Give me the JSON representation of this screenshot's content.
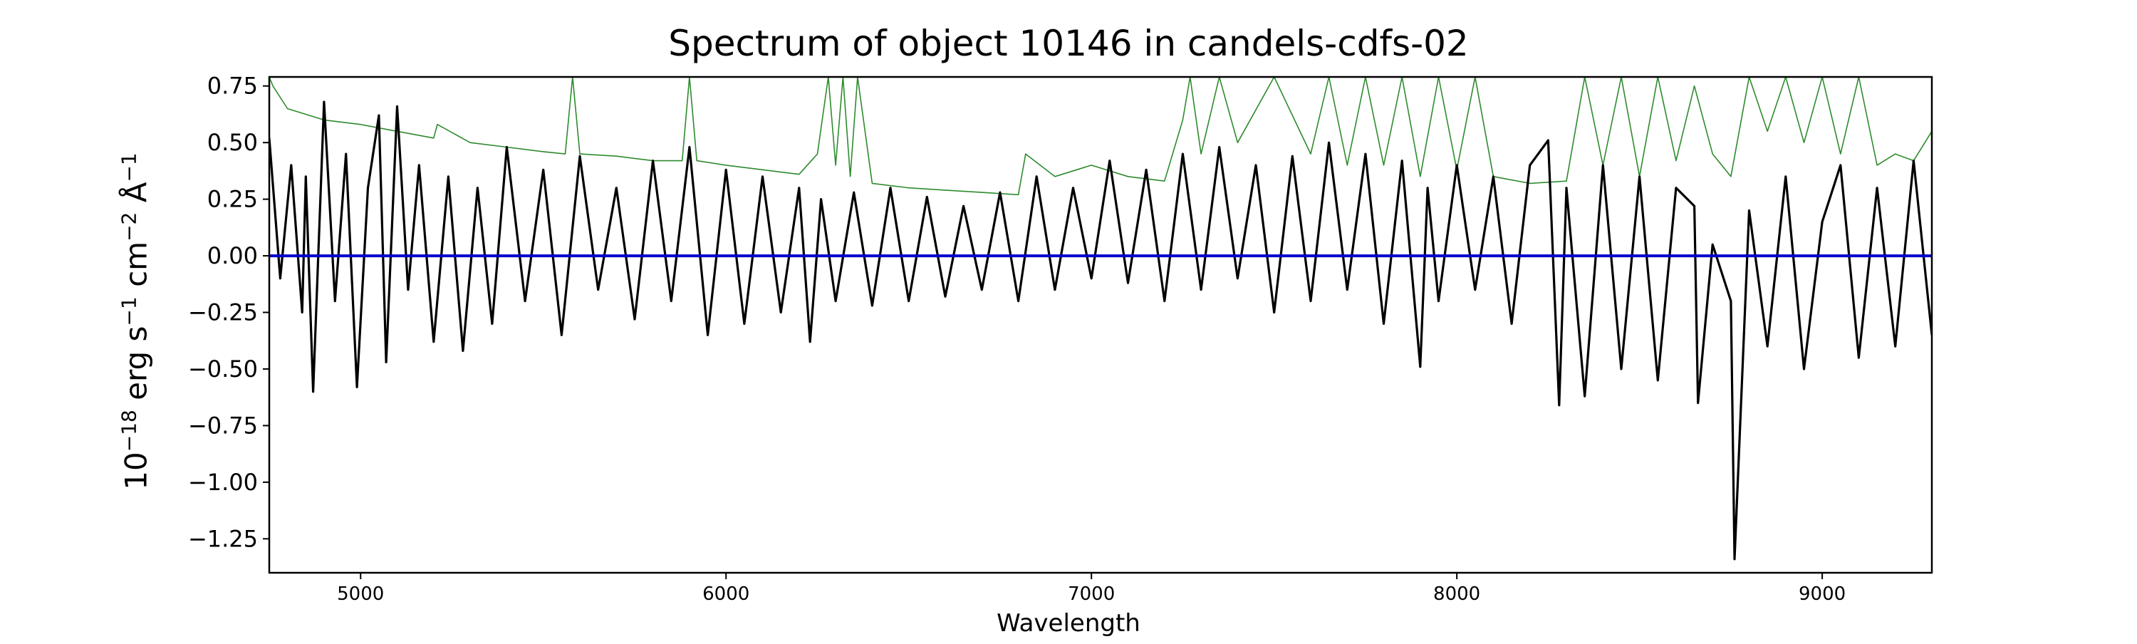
{
  "chart_data": {
    "type": "line",
    "title": "Spectrum of object 10146 in candels-cdfs-02",
    "xlabel": "Wavelength",
    "ylabel": {
      "text": "erg s cm Å",
      "base": "10",
      "exp_scale": "−18",
      "unit_erg": "erg s",
      "exp_s": "−1",
      "unit_cm": "cm",
      "exp_cm": "−2",
      "unit_A": "Å",
      "exp_A": "−1"
    },
    "xlim": [
      4750,
      9300
    ],
    "ylim": [
      -1.4,
      0.79
    ],
    "xticks": [
      5000,
      6000,
      7000,
      8000,
      9000
    ],
    "xtick_labels": [
      "5000",
      "6000",
      "7000",
      "8000",
      "9000"
    ],
    "yticks": [
      0.75,
      0.5,
      0.25,
      0.0,
      -0.25,
      -0.5,
      -0.75,
      -1.0,
      -1.25
    ],
    "ytick_labels": [
      "0.75",
      "0.50",
      "0.25",
      "0.00",
      "−0.25",
      "−0.50",
      "−0.75",
      "−1.00",
      "−1.25"
    ],
    "grid": false,
    "series": [
      {
        "role": "flux",
        "color": "#000000",
        "x": [
          4750,
          4780,
          4810,
          4840,
          4850,
          4870,
          4900,
          4930,
          4960,
          4990,
          5020,
          5050,
          5070,
          5100,
          5130,
          5160,
          5200,
          5240,
          5280,
          5320,
          5360,
          5400,
          5450,
          5500,
          5550,
          5600,
          5650,
          5700,
          5750,
          5800,
          5850,
          5900,
          5950,
          6000,
          6050,
          6100,
          6150,
          6200,
          6230,
          6260,
          6300,
          6350,
          6400,
          6450,
          6500,
          6550,
          6600,
          6650,
          6700,
          6750,
          6800,
          6850,
          6900,
          6950,
          7000,
          7050,
          7100,
          7150,
          7200,
          7250,
          7300,
          7350,
          7400,
          7450,
          7500,
          7550,
          7600,
          7650,
          7700,
          7750,
          7800,
          7850,
          7900,
          7920,
          7950,
          8000,
          8050,
          8100,
          8150,
          8200,
          8250,
          8280,
          8300,
          8350,
          8400,
          8450,
          8500,
          8550,
          8600,
          8650,
          8660,
          8700,
          8750,
          8760,
          8800,
          8850,
          8900,
          8950,
          9000,
          9050,
          9100,
          9150,
          9200,
          9250,
          9300
        ],
        "values": [
          0.52,
          -0.1,
          0.4,
          -0.25,
          0.35,
          -0.6,
          0.68,
          -0.2,
          0.45,
          -0.58,
          0.3,
          0.62,
          -0.47,
          0.66,
          -0.15,
          0.4,
          -0.38,
          0.35,
          -0.42,
          0.3,
          -0.3,
          0.48,
          -0.2,
          0.38,
          -0.35,
          0.44,
          -0.15,
          0.3,
          -0.28,
          0.42,
          -0.2,
          0.48,
          -0.35,
          0.38,
          -0.3,
          0.35,
          -0.25,
          0.3,
          -0.38,
          0.25,
          -0.2,
          0.28,
          -0.22,
          0.3,
          -0.2,
          0.26,
          -0.18,
          0.22,
          -0.15,
          0.28,
          -0.2,
          0.35,
          -0.15,
          0.3,
          -0.1,
          0.42,
          -0.12,
          0.38,
          -0.2,
          0.45,
          -0.15,
          0.48,
          -0.1,
          0.4,
          -0.25,
          0.44,
          -0.2,
          0.5,
          -0.15,
          0.45,
          -0.3,
          0.42,
          -0.49,
          0.3,
          -0.2,
          0.4,
          -0.15,
          0.35,
          -0.3,
          0.4,
          0.51,
          -0.66,
          0.3,
          -0.62,
          0.4,
          -0.5,
          0.35,
          -0.55,
          0.3,
          0.22,
          -0.65,
          0.05,
          -0.2,
          -1.34,
          0.2,
          -0.4,
          0.35,
          -0.5,
          0.15,
          0.4,
          -0.45,
          0.3,
          -0.4,
          0.42,
          -0.35
        ]
      },
      {
        "role": "error",
        "color": "#2e8b2e",
        "x": [
          4750,
          4760,
          4800,
          4900,
          5000,
          5100,
          5200,
          5210,
          5300,
          5400,
          5500,
          5560,
          5580,
          5600,
          5700,
          5800,
          5880,
          5900,
          5920,
          6000,
          6100,
          6200,
          6250,
          6280,
          6300,
          6320,
          6340,
          6360,
          6400,
          6500,
          6600,
          6700,
          6800,
          6820,
          6900,
          7000,
          7100,
          7200,
          7250,
          7270,
          7300,
          7350,
          7400,
          7500,
          7600,
          7650,
          7700,
          7750,
          7800,
          7850,
          7900,
          7950,
          8000,
          8050,
          8100,
          8200,
          8300,
          8350,
          8400,
          8450,
          8500,
          8550,
          8600,
          8650,
          8700,
          8750,
          8800,
          8850,
          8900,
          8950,
          9000,
          9050,
          9100,
          9150,
          9200,
          9250,
          9300
        ],
        "values": [
          0.79,
          0.75,
          0.65,
          0.6,
          0.58,
          0.55,
          0.52,
          0.58,
          0.5,
          0.48,
          0.46,
          0.45,
          0.79,
          0.45,
          0.44,
          0.42,
          0.42,
          0.79,
          0.42,
          0.4,
          0.38,
          0.36,
          0.45,
          0.79,
          0.4,
          0.79,
          0.35,
          0.79,
          0.32,
          0.3,
          0.29,
          0.28,
          0.27,
          0.45,
          0.35,
          0.4,
          0.35,
          0.33,
          0.6,
          0.79,
          0.45,
          0.79,
          0.5,
          0.79,
          0.45,
          0.79,
          0.4,
          0.79,
          0.4,
          0.79,
          0.35,
          0.79,
          0.38,
          0.79,
          0.35,
          0.32,
          0.33,
          0.79,
          0.4,
          0.79,
          0.35,
          0.79,
          0.42,
          0.75,
          0.45,
          0.35,
          0.79,
          0.55,
          0.79,
          0.5,
          0.79,
          0.45,
          0.79,
          0.4,
          0.45,
          0.42,
          0.55
        ]
      },
      {
        "role": "continuum",
        "color": "#0000cc",
        "x": [
          4750,
          9300
        ],
        "values": [
          0.0,
          0.0
        ]
      }
    ]
  }
}
